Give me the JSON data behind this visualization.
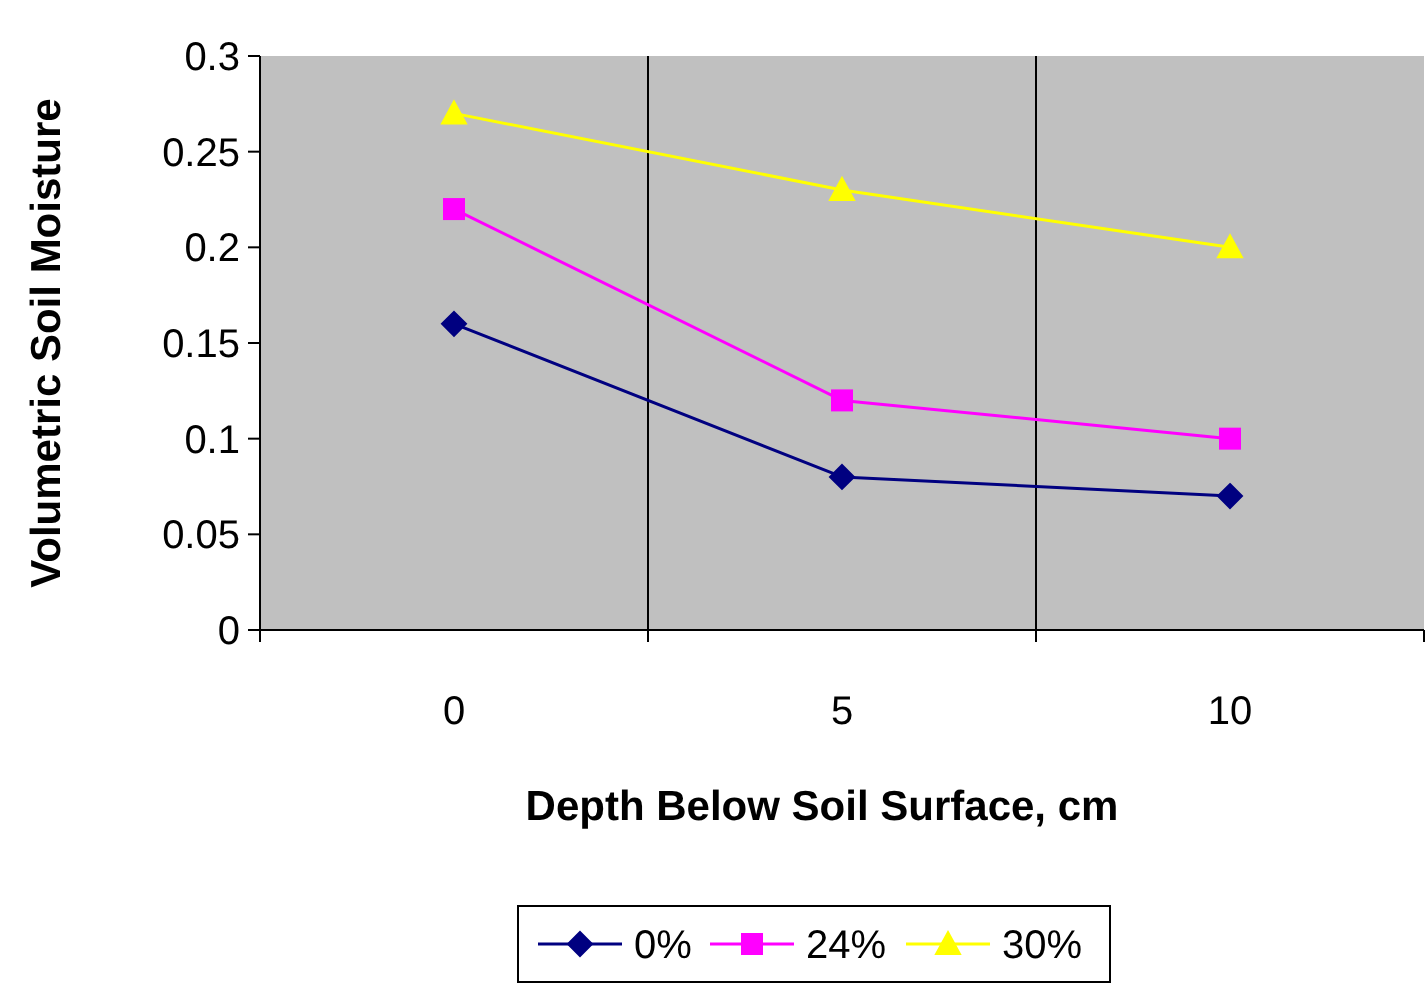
{
  "chart_data": {
    "type": "line",
    "xlabel": "Depth Below Soil Surface, cm",
    "ylabel": "Volumetric Soil Moisture",
    "categories": [
      "0",
      "5",
      "10"
    ],
    "series": [
      {
        "name": "0%",
        "color": "#000080",
        "marker": "diamond",
        "values": [
          0.16,
          0.08,
          0.07
        ]
      },
      {
        "name": "24%",
        "color": "#ff00ff",
        "marker": "square",
        "values": [
          0.22,
          0.12,
          0.1
        ]
      },
      {
        "name": "30%",
        "color": "#ffff00",
        "marker": "triangle",
        "values": [
          0.27,
          0.23,
          0.2
        ]
      }
    ],
    "ylim": [
      0,
      0.3
    ],
    "yticks": [
      0,
      0.05,
      0.1,
      0.15,
      0.2,
      0.25,
      0.3
    ],
    "grid": "x",
    "legend": "bottom"
  }
}
